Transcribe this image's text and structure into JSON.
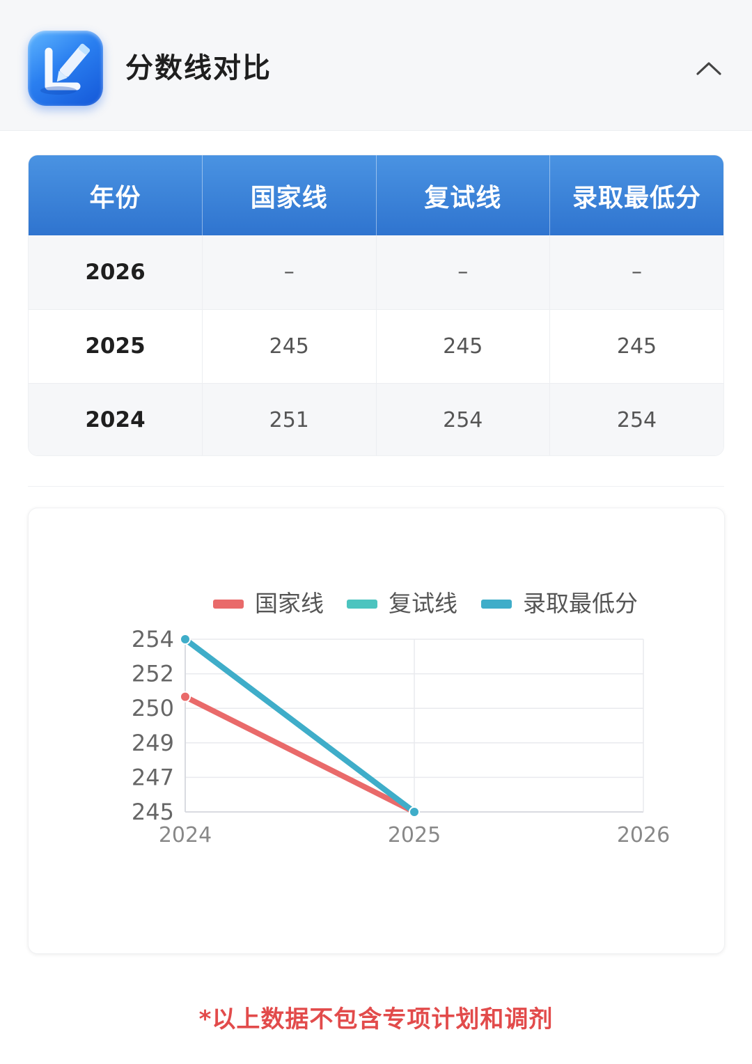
{
  "header": {
    "title": "分数线对比",
    "icon": "pencil-edit-icon",
    "collapse_icon": "chevron-up-icon"
  },
  "table": {
    "columns": [
      "年份",
      "国家线",
      "复试线",
      "录取最低分"
    ],
    "rows": [
      [
        "2026",
        "–",
        "–",
        "–"
      ],
      [
        "2025",
        "245",
        "245",
        "245"
      ],
      [
        "2024",
        "251",
        "254",
        "254"
      ]
    ],
    "header_color": "#3a82d8"
  },
  "chart_data": {
    "type": "line",
    "x": [
      "2024",
      "2025",
      "2026"
    ],
    "ytick_labels": [
      "245",
      "247",
      "249",
      "250",
      "252",
      "254"
    ],
    "ylim": [
      245,
      254
    ],
    "grid": true,
    "legend_position": "top",
    "series": [
      {
        "name": "国家线",
        "values": [
          251,
          245,
          null
        ],
        "color": "#e96a6a"
      },
      {
        "name": "复试线",
        "values": [
          254,
          245,
          null
        ],
        "color": "#4cc4bf"
      },
      {
        "name": "录取最低分",
        "values": [
          254,
          245,
          null
        ],
        "color": "#3fadc9"
      }
    ]
  },
  "footer": {
    "note": "*以上数据不包含专项计划和调剂"
  }
}
